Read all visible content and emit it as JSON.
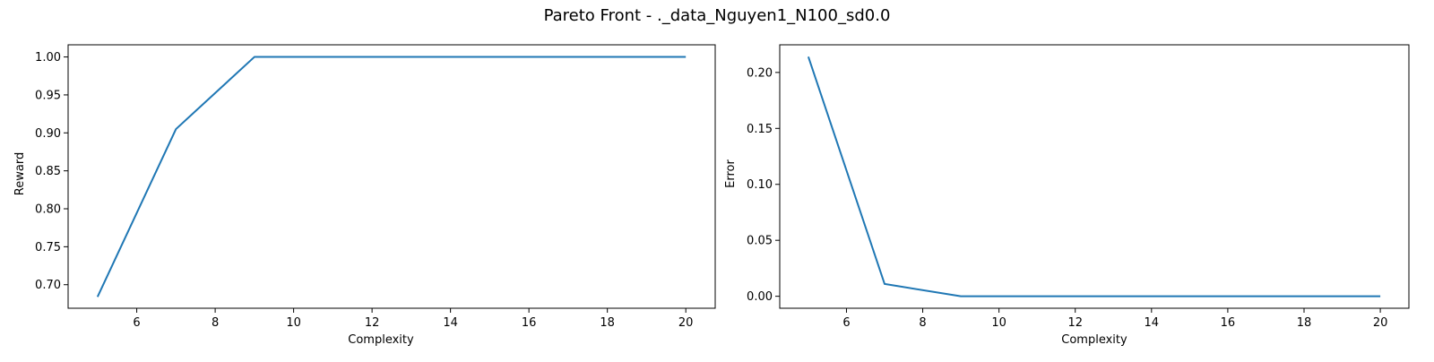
{
  "figure": {
    "title": "Pareto Front - ._data_Nguyen1_N100_sd0.0"
  },
  "chart_data": [
    {
      "type": "line",
      "title": "",
      "xlabel": "Complexity",
      "ylabel": "Reward",
      "xlim": [
        4.25,
        20.75
      ],
      "ylim": [
        0.669,
        1.016
      ],
      "xticks": [
        6,
        8,
        10,
        12,
        14,
        16,
        18,
        20
      ],
      "yticks": [
        0.7,
        0.75,
        0.8,
        0.85,
        0.9,
        0.95,
        1.0
      ],
      "ytick_labels": [
        "0.70",
        "0.75",
        "0.80",
        "0.85",
        "0.90",
        "0.95",
        "1.00"
      ],
      "grid": false,
      "color": "#1f77b4",
      "x": [
        5,
        7,
        9,
        20
      ],
      "y": [
        0.684,
        0.905,
        1.0,
        1.0
      ]
    },
    {
      "type": "line",
      "title": "",
      "xlabel": "Complexity",
      "ylabel": "Error",
      "xlim": [
        4.25,
        20.75
      ],
      "ylim": [
        -0.0107,
        0.2247
      ],
      "xticks": [
        6,
        8,
        10,
        12,
        14,
        16,
        18,
        20
      ],
      "yticks": [
        0.0,
        0.05,
        0.1,
        0.15,
        0.2
      ],
      "ytick_labels": [
        "0.00",
        "0.05",
        "0.10",
        "0.15",
        "0.20"
      ],
      "grid": false,
      "color": "#1f77b4",
      "x": [
        5,
        7,
        9,
        20
      ],
      "y": [
        0.214,
        0.011,
        0.0,
        0.0
      ]
    }
  ]
}
